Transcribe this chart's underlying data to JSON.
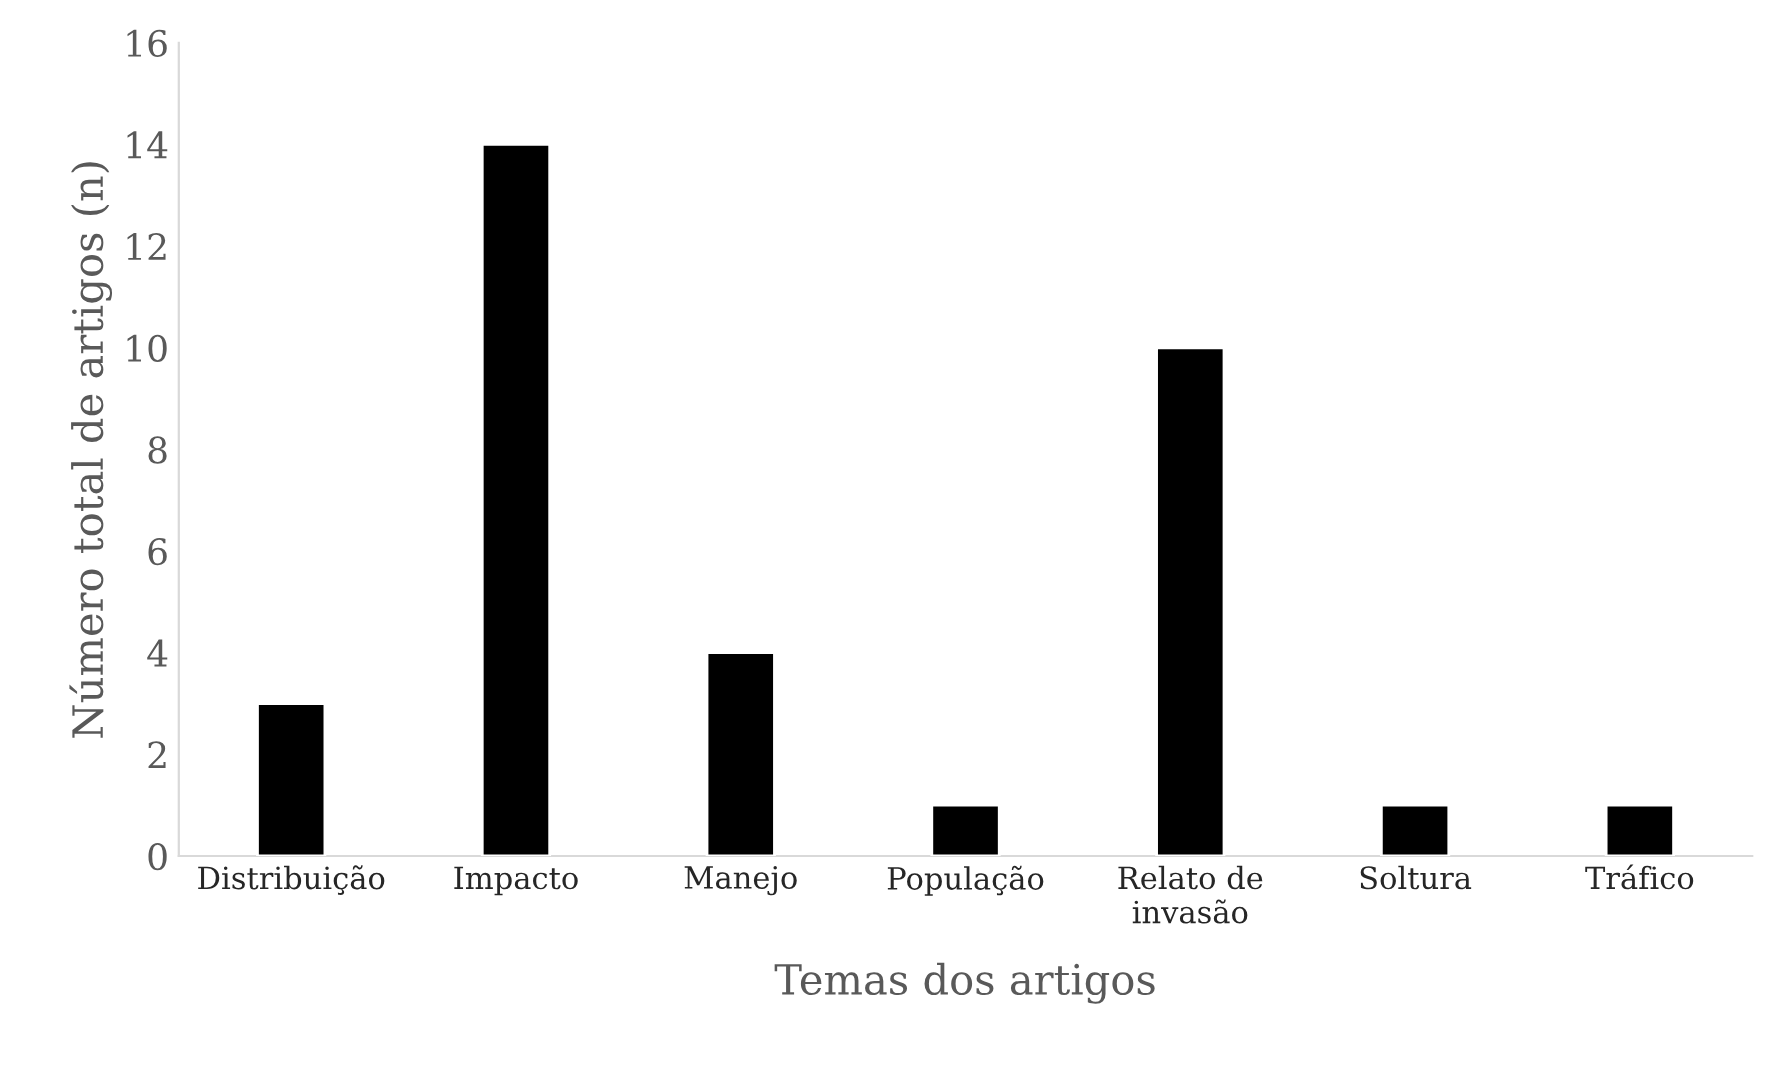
{
  "chart_data": {
    "type": "bar",
    "xlabel": "Temas dos artigos",
    "ylabel": "Número total de artigos (n)",
    "categories": [
      "Distribuição",
      "Impacto",
      "Manejo",
      "População",
      "Relato de\ninvasão",
      "Soltura",
      "Tráfico"
    ],
    "values": [
      3,
      14,
      4,
      1,
      10,
      1,
      1
    ],
    "color": "#000000",
    "ylim": [
      0,
      16
    ],
    "yticks": [
      0,
      2,
      4,
      6,
      8,
      10,
      12,
      14,
      16
    ],
    "grid": false,
    "legend": false
  }
}
